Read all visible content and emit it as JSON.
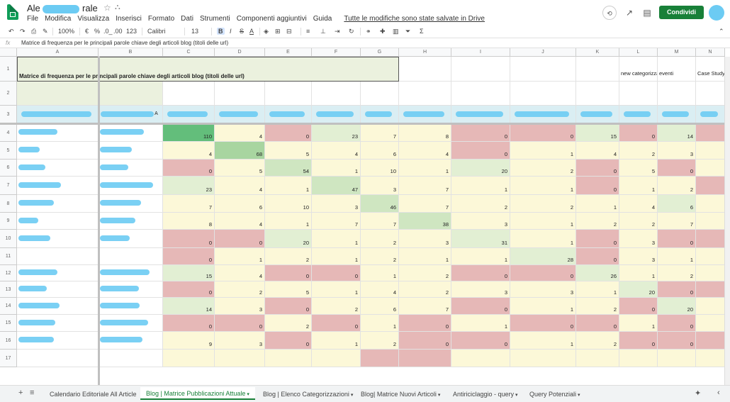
{
  "title_prefix": "Ale",
  "title_suffix": "rale",
  "menu": [
    "File",
    "Modifica",
    "Visualizza",
    "Inserisci",
    "Formato",
    "Dati",
    "Strumenti",
    "Componenti aggiuntivi",
    "Guida"
  ],
  "saved_status": "Tutte le modifiche sono state salvate in Drive",
  "share_label": "Condividi",
  "toolbar": {
    "zoom": "100%",
    "currency": "€",
    "percent": "%",
    "dec_down": ".0_",
    "dec_up": ".00",
    "format": "123",
    "font": "Calibri",
    "size": "13",
    "bold": "B",
    "italic": "I",
    "strike": "S",
    "underline_a": "A"
  },
  "formula": {
    "fx": "fx",
    "content": "Matrice di frequenza per le principali parole chiave degli articoli blog (titoli delle url)"
  },
  "columns": [
    "A",
    "B",
    "C",
    "D",
    "E",
    "F",
    "G",
    "H",
    "I",
    "J",
    "K",
    "L",
    "M",
    "N"
  ],
  "header_row": {
    "title": "Matrice di frequenza per le principali parole chiave degli articoli blog (titoli delle url)",
    "l": "new categorizzati",
    "m": "eventi",
    "n": "Case Study",
    "b3_suffix": "A"
  },
  "row_numbers": [
    "1",
    "2",
    "3",
    "4",
    "5",
    "6",
    "7",
    "8",
    "9",
    "10",
    "11",
    "12",
    "13",
    "14",
    "15",
    "16",
    "17"
  ],
  "data_rows": [
    [
      110,
      4,
      0,
      23,
      7,
      8,
      0,
      0,
      15,
      0,
      14
    ],
    [
      4,
      68,
      5,
      4,
      6,
      4,
      0,
      1,
      4,
      2,
      3
    ],
    [
      0,
      5,
      54,
      1,
      10,
      1,
      20,
      2,
      0,
      5,
      0
    ],
    [
      23,
      4,
      1,
      47,
      3,
      7,
      1,
      1,
      0,
      1,
      2
    ],
    [
      7,
      6,
      10,
      3,
      46,
      7,
      2,
      2,
      1,
      4,
      6
    ],
    [
      8,
      4,
      1,
      7,
      7,
      38,
      3,
      1,
      2,
      2,
      7
    ],
    [
      0,
      0,
      20,
      1,
      2,
      3,
      31,
      1,
      0,
      3,
      0
    ],
    [
      0,
      1,
      2,
      1,
      2,
      1,
      1,
      28,
      0,
      3,
      1
    ],
    [
      15,
      4,
      0,
      0,
      1,
      2,
      0,
      0,
      26,
      1,
      2
    ],
    [
      0,
      2,
      5,
      1,
      4,
      2,
      3,
      3,
      1,
      20,
      0
    ],
    [
      14,
      3,
      0,
      2,
      6,
      7,
      0,
      1,
      2,
      0,
      20
    ],
    [
      0,
      0,
      2,
      0,
      1,
      0,
      1,
      0,
      0,
      1,
      0
    ],
    [
      9,
      3,
      0,
      1,
      2,
      0,
      0,
      1,
      2,
      0,
      0
    ],
    [
      "",
      "",
      "",
      "",
      "",
      "",
      "",
      "",
      "",
      "",
      ""
    ]
  ],
  "data_classes": [
    [
      "g3",
      "ylw",
      "red",
      "lg",
      "ylw",
      "ylw",
      "red",
      "red",
      "lg",
      "red",
      "lg"
    ],
    [
      "ylw",
      "g2",
      "ylw",
      "ylw",
      "ylw",
      "ylw",
      "red",
      "ylw",
      "ylw",
      "ylw",
      "ylw"
    ],
    [
      "red",
      "ylw",
      "g1",
      "ylw",
      "ylw",
      "ylw",
      "lg",
      "ylw",
      "red",
      "ylw",
      "red"
    ],
    [
      "lg",
      "ylw",
      "ylw",
      "g1",
      "ylw",
      "ylw",
      "ylw",
      "ylw",
      "red",
      "ylw",
      "ylw"
    ],
    [
      "ylw",
      "ylw",
      "ylw",
      "ylw",
      "g1",
      "ylw",
      "ylw",
      "ylw",
      "ylw",
      "ylw",
      "lg"
    ],
    [
      "ylw",
      "ylw",
      "ylw",
      "ylw",
      "ylw",
      "g1",
      "ylw",
      "ylw",
      "ylw",
      "ylw",
      "ylw"
    ],
    [
      "red",
      "red",
      "lg",
      "ylw",
      "ylw",
      "ylw",
      "lg",
      "ylw",
      "red",
      "ylw",
      "red"
    ],
    [
      "red",
      "ylw",
      "ylw",
      "ylw",
      "ylw",
      "ylw",
      "ylw",
      "lg",
      "red",
      "ylw",
      "ylw"
    ],
    [
      "lg",
      "ylw",
      "red",
      "red",
      "ylw",
      "ylw",
      "red",
      "red",
      "lg",
      "ylw",
      "ylw"
    ],
    [
      "red",
      "ylw",
      "ylw",
      "ylw",
      "ylw",
      "ylw",
      "ylw",
      "ylw",
      "ylw",
      "lg",
      "red"
    ],
    [
      "lg",
      "ylw",
      "red",
      "ylw",
      "ylw",
      "ylw",
      "red",
      "ylw",
      "ylw",
      "red",
      "lg"
    ],
    [
      "red",
      "red",
      "ylw",
      "red",
      "ylw",
      "red",
      "ylw",
      "red",
      "red",
      "ylw",
      "red"
    ],
    [
      "ylw",
      "ylw",
      "red",
      "ylw",
      "ylw",
      "red",
      "red",
      "ylw",
      "ylw",
      "red",
      "red"
    ],
    [
      "ylw",
      "ylw",
      "ylw",
      "ylw",
      "red",
      "red",
      "ylw",
      "ylw",
      "ylw",
      "ylw",
      "ylw"
    ]
  ],
  "tabs": [
    "Calendario Editoriale All Article",
    "Blog | Matrice Pubblicazioni Attuale",
    "Blog | Elenco Categorizzazioni",
    "Blog| Matrice Nuovi Articoli",
    "Antiriciclaggio - query",
    "Query Potenziali"
  ],
  "colors": {
    "share": "#188038",
    "red": "#e6b8b7",
    "yellow": "#fcf8d8",
    "green_strong": "#63be7b",
    "redaction": "#6ccbf3"
  }
}
